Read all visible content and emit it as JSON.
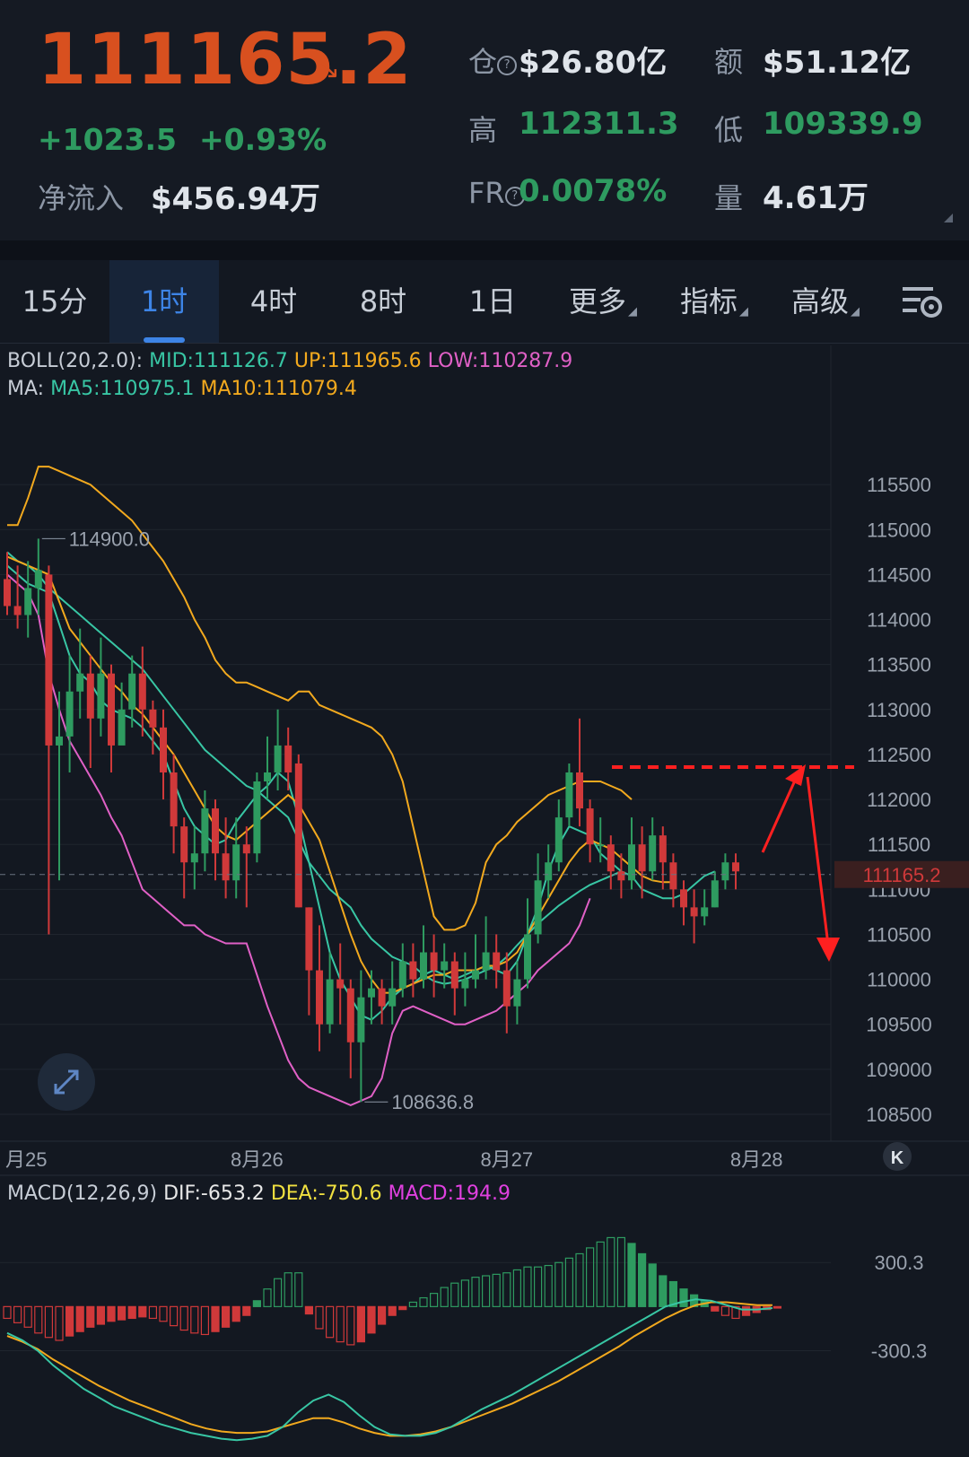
{
  "header": {
    "price": "111165.2",
    "price_arrow": "↘",
    "change": "+1023.5",
    "change_pct": "+0.93%",
    "netflow_label": "净流入",
    "netflow_value": "$456.94万",
    "oi_label": "仓",
    "oi_value": "$26.80亿",
    "amount_label": "额",
    "amount_value": "$51.12亿",
    "high_label": "高",
    "high_value": "112311.3",
    "low_label": "低",
    "low_value": "109339.9",
    "fr_label": "FR",
    "fr_value": "0.0078%",
    "volume_label": "量",
    "volume_value": "4.61万"
  },
  "tabs": [
    {
      "label": "15分",
      "active": false
    },
    {
      "label": "1时",
      "active": true
    },
    {
      "label": "4时",
      "active": false
    },
    {
      "label": "8时",
      "active": false
    },
    {
      "label": "1日",
      "active": false
    },
    {
      "label": "更多",
      "active": false,
      "dropdown": true
    },
    {
      "label": "指标",
      "active": false,
      "dropdown": true
    },
    {
      "label": "高级",
      "active": false,
      "dropdown": true
    }
  ],
  "settings_icon": "chart-settings-icon",
  "expand_icon": "expand-icon",
  "scroll_end_icon": "scroll-to-latest-icon",
  "colors": {
    "up": "#2e9b60",
    "down": "#d0393a",
    "mid": "#38c6a4",
    "upper": "#f2a91e",
    "lower": "#e060c6",
    "ma5": "#38c6a4",
    "ma10": "#f2a91e",
    "dif": "#38c6a4",
    "dea": "#f2a91e",
    "annotation": "#ff2020"
  },
  "boll_legend": {
    "name": "BOLL(20,2.0):",
    "mid": "MID:111126.7",
    "up": "UP:111965.6",
    "low": "LOW:110287.9"
  },
  "ma_legend": {
    "name": "MA:",
    "ma5": "MA5:110975.1",
    "ma10": "MA10:111079.4"
  },
  "macd_legend": {
    "name": "MACD(12,26,9)",
    "dif": "DIF:-653.2",
    "dea": "DEA:-750.6",
    "macd": "MACD:194.9"
  },
  "chart_data": [
    {
      "type": "candlestick",
      "y_ticks": [
        115500,
        115000,
        114500,
        114000,
        113500,
        113000,
        112500,
        112000,
        111500,
        111000,
        110500,
        110000,
        109500,
        109000,
        108500
      ],
      "ylim": [
        108300,
        116200
      ],
      "x_ticks": [
        {
          "label": "月25",
          "index": 0
        },
        {
          "label": "8月26",
          "index": 24
        },
        {
          "label": "8月27",
          "index": 48
        },
        {
          "label": "8月28",
          "index": 72
        }
      ],
      "current_price": 111165.2,
      "current_price_label": "111165.2",
      "max_marker": {
        "value": 114900.0,
        "label": "114900.0",
        "index": 3
      },
      "min_marker": {
        "value": 108636.8,
        "label": "108636.8",
        "index": 34
      },
      "resistance_level": 112360,
      "candles": [
        [
          114450,
          114150,
          114750,
          114050
        ],
        [
          114150,
          114050,
          114600,
          113900
        ],
        [
          114050,
          114350,
          114650,
          113800
        ],
        [
          114350,
          114550,
          114900,
          114050
        ],
        [
          114500,
          112600,
          114600,
          110500
        ],
        [
          112600,
          112700,
          113200,
          111100
        ],
        [
          112700,
          113200,
          113600,
          112300
        ],
        [
          113200,
          113400,
          113900,
          112900
        ],
        [
          113400,
          112900,
          113600,
          112350
        ],
        [
          112900,
          113400,
          113800,
          112700
        ],
        [
          113400,
          112600,
          113500,
          112300
        ],
        [
          112600,
          113000,
          113300,
          112700
        ],
        [
          113000,
          113400,
          113600,
          112800
        ],
        [
          113400,
          113000,
          113700,
          112700
        ],
        [
          113000,
          112800,
          113100,
          112500
        ],
        [
          112800,
          112300,
          113000,
          112000
        ],
        [
          112300,
          111700,
          112500,
          111400
        ],
        [
          111700,
          111300,
          111800,
          110900
        ],
        [
          111300,
          111400,
          111700,
          111000
        ],
        [
          111400,
          111900,
          112100,
          111200
        ],
        [
          111900,
          111400,
          112000,
          111100
        ],
        [
          111400,
          111100,
          111800,
          110900
        ],
        [
          111100,
          111500,
          111800,
          110900
        ],
        [
          111500,
          111400,
          111700,
          110800
        ],
        [
          111400,
          112200,
          112300,
          111300
        ],
        [
          112200,
          112300,
          112700,
          112000
        ],
        [
          112300,
          112600,
          113000,
          112100
        ],
        [
          112600,
          112300,
          112800,
          112100
        ],
        [
          112400,
          110800,
          112500,
          110800
        ],
        [
          110800,
          110100,
          110800,
          109600
        ],
        [
          110100,
          109500,
          110600,
          109200
        ],
        [
          109500,
          110000,
          110300,
          109400
        ],
        [
          110000,
          109900,
          110400,
          109500
        ],
        [
          109900,
          109300,
          110000,
          108900
        ],
        [
          109300,
          109800,
          110100,
          108636.8
        ],
        [
          109800,
          109900,
          110100,
          109500
        ],
        [
          109900,
          109700,
          110000,
          109500
        ],
        [
          109700,
          109900,
          110200,
          109500
        ],
        [
          109900,
          110200,
          110400,
          109800
        ],
        [
          110200,
          110000,
          110400,
          109800
        ],
        [
          110000,
          110300,
          110600,
          109900
        ],
        [
          110300,
          110100,
          110500,
          109800
        ],
        [
          110100,
          110200,
          110400,
          109900
        ],
        [
          110200,
          109900,
          110300,
          109600
        ],
        [
          109900,
          110000,
          110300,
          109700
        ],
        [
          110000,
          110100,
          110500,
          109900
        ],
        [
          110100,
          110300,
          110700,
          110000
        ],
        [
          110300,
          110100,
          110500,
          109900
        ],
        [
          110100,
          109700,
          110300,
          109400
        ],
        [
          109700,
          110000,
          110200,
          109500
        ],
        [
          110000,
          110500,
          110900,
          109900
        ],
        [
          110500,
          111100,
          111400,
          110400
        ],
        [
          111100,
          111300,
          111500,
          110900
        ],
        [
          111300,
          111800,
          112000,
          111200
        ],
        [
          111800,
          112300,
          112400,
          111700
        ],
        [
          112300,
          111900,
          112900,
          111700
        ],
        [
          111900,
          111500,
          112000,
          111300
        ],
        [
          111500,
          111500,
          111800,
          111300
        ],
        [
          111500,
          111200,
          111600,
          111000
        ],
        [
          111200,
          111100,
          111400,
          110900
        ],
        [
          111100,
          111500,
          111800,
          111000
        ],
        [
          111500,
          111200,
          111700,
          110900
        ],
        [
          111200,
          111600,
          111800,
          111100
        ],
        [
          111600,
          111300,
          111700,
          111000
        ],
        [
          111300,
          111000,
          111400,
          110800
        ],
        [
          111000,
          110800,
          111100,
          110600
        ],
        [
          110800,
          110700,
          111000,
          110400
        ],
        [
          110700,
          110800,
          111000,
          110600
        ],
        [
          110800,
          111100,
          111200,
          110800
        ],
        [
          111100,
          111300,
          111400,
          111000
        ],
        [
          111300,
          111200,
          111400,
          111000
        ]
      ],
      "boll_upper": [
        115050,
        115050,
        115350,
        115700,
        115700,
        115650,
        115600,
        115550,
        115500,
        115400,
        115300,
        115200,
        115100,
        114950,
        114800,
        114650,
        114450,
        114250,
        114000,
        113800,
        113550,
        113400,
        113300,
        113300,
        113250,
        113200,
        113150,
        113100,
        113200,
        113200,
        113050,
        113000,
        112950,
        112900,
        112850,
        112800,
        112700,
        112500,
        112200,
        111700,
        111200,
        110700,
        110550,
        110550,
        110600,
        110850,
        111300,
        111500,
        111600,
        111750,
        111850,
        111950,
        112050,
        112100,
        112150,
        112200,
        112200,
        112200,
        112150,
        112100,
        112000
      ],
      "boll_lower": [
        114500,
        114400,
        114300,
        114050,
        113400,
        113000,
        112650,
        112450,
        112250,
        112050,
        111800,
        111600,
        111300,
        111000,
        110900,
        110800,
        110700,
        110600,
        110600,
        110500,
        110450,
        110400,
        110400,
        110400,
        110050,
        109700,
        109400,
        109100,
        108900,
        108800,
        108750,
        108700,
        108650,
        108600,
        108650,
        108700,
        108900,
        109400,
        109650,
        109700,
        109650,
        109600,
        109550,
        109500,
        109500,
        109550,
        109600,
        109650,
        109750,
        109850,
        109950,
        110100,
        110200,
        110300,
        110400,
        110600,
        110900
      ],
      "boll_mid": [
        114750,
        114650,
        114600,
        114500,
        114350,
        114250,
        114150,
        114050,
        113950,
        113850,
        113750,
        113650,
        113550,
        113450,
        113300,
        113150,
        113000,
        112850,
        112700,
        112550,
        112450,
        112350,
        112250,
        112150,
        112100,
        112000,
        111900,
        111800,
        111550,
        111300,
        111150,
        111000,
        110900,
        110800,
        110600,
        110450,
        110350,
        110250,
        110200,
        110150,
        110050,
        109980,
        109950,
        109970,
        110000,
        110050,
        110100,
        110150,
        110250,
        110380,
        110500,
        110620,
        110720,
        110820,
        110900,
        110980,
        111050,
        111100,
        111150,
        111200
      ],
      "ma5": [
        114600,
        114500,
        114400,
        114350,
        114300,
        113950,
        113600,
        113400,
        113300,
        113100,
        113000,
        112950,
        112900,
        112800,
        112650,
        112500,
        112200,
        111900,
        111700,
        111600,
        111500,
        111550,
        111750,
        111900,
        112050,
        112150,
        112300,
        112200,
        111800,
        111300,
        110800,
        110300,
        110000,
        109800,
        109600,
        109550,
        109650,
        109800,
        109900,
        109950,
        110050,
        110100,
        110050,
        110000,
        110050,
        110100,
        110150,
        110100,
        110050,
        110200,
        110500,
        110800,
        111200,
        111500,
        111700,
        111650,
        111600,
        111400,
        111300,
        111200,
        111150,
        111000,
        110950,
        110900,
        110900,
        110950,
        111050,
        111150,
        111200
      ],
      "ma10": [
        114700,
        114650,
        114600,
        114550,
        114500,
        114200,
        113900,
        113750,
        113600,
        113450,
        113300,
        113200,
        113050,
        112950,
        112800,
        112650,
        112500,
        112300,
        112100,
        111900,
        111700,
        111600,
        111550,
        111650,
        111750,
        111850,
        111950,
        112050,
        111950,
        111750,
        111550,
        111200,
        110850,
        110500,
        110200,
        110000,
        109850,
        109850,
        109900,
        109950,
        110000,
        110050,
        110050,
        110100,
        110100,
        110100,
        110150,
        110150,
        110200,
        110300,
        110500,
        110700,
        110900,
        111100,
        111300,
        111450,
        111550,
        111500,
        111450,
        111350,
        111250,
        111150,
        111100,
        111080,
        111080
      ]
    },
    {
      "type": "macd",
      "y_ticks": [
        300.3,
        -300.3
      ],
      "ylim": [
        -1000,
        650
      ],
      "histogram": [
        -80,
        -110,
        -140,
        -180,
        -210,
        -230,
        -200,
        -170,
        -140,
        -120,
        -100,
        -90,
        -80,
        -70,
        -80,
        -100,
        -130,
        -160,
        -180,
        -190,
        -170,
        -140,
        -100,
        -60,
        40,
        120,
        190,
        230,
        230,
        -50,
        -150,
        -210,
        -240,
        -260,
        -240,
        -180,
        -120,
        -60,
        -20,
        30,
        60,
        90,
        130,
        160,
        180,
        200,
        210,
        220,
        230,
        250,
        270,
        270,
        280,
        300,
        330,
        360,
        400,
        440,
        470,
        470,
        430,
        360,
        290,
        210,
        170,
        120,
        80,
        40,
        -30,
        -60,
        -80,
        -60,
        -40,
        -20,
        -10
      ],
      "dif": [
        -180,
        -230,
        -300,
        -400,
        -480,
        -560,
        -620,
        -680,
        -720,
        -760,
        -800,
        -830,
        -860,
        -880,
        -900,
        -910,
        -900,
        -880,
        -820,
        -720,
        -640,
        -600,
        -650,
        -740,
        -820,
        -870,
        -880,
        -880,
        -860,
        -820,
        -760,
        -700,
        -650,
        -600,
        -540,
        -480,
        -420,
        -360,
        -300,
        -240,
        -180,
        -120,
        -60,
        0,
        30,
        50,
        40,
        10,
        -20,
        -20,
        -10
      ],
      "dea": [
        -200,
        -240,
        -290,
        -360,
        -420,
        -480,
        -540,
        -590,
        -640,
        -680,
        -720,
        -760,
        -800,
        -830,
        -850,
        -860,
        -860,
        -850,
        -820,
        -790,
        -760,
        -760,
        -790,
        -830,
        -860,
        -880,
        -880,
        -870,
        -850,
        -820,
        -780,
        -740,
        -700,
        -660,
        -610,
        -560,
        -510,
        -450,
        -390,
        -330,
        -270,
        -200,
        -140,
        -80,
        -30,
        10,
        30,
        30,
        20,
        10,
        10
      ]
    }
  ]
}
